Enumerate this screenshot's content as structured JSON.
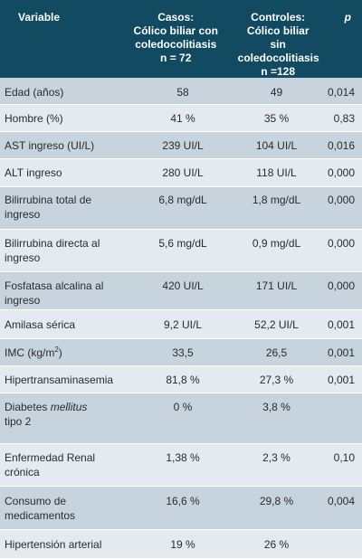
{
  "header": {
    "variable": "Variable",
    "casos": [
      "Casos:",
      "Cólico biliar con",
      "coledocolitiasis",
      "n = 72"
    ],
    "controles": [
      "Controles:",
      "Cólico biliar sin",
      "coledocolitiasis",
      "n =128"
    ],
    "p": "p"
  },
  "rows": [
    {
      "variable": "Edad (años)",
      "casos": "58",
      "controles": "49",
      "p": "0,014"
    },
    {
      "variable": "Hombre (%)",
      "casos": "41 %",
      "controles": "35 %",
      "p": "0,83"
    },
    {
      "variable": "AST ingreso (UI/L)",
      "casos": "239 UI/L",
      "controles": "104 UI/L",
      "p": "0,016"
    },
    {
      "variable": "ALT ingreso",
      "casos": "280 UI/L",
      "controles": "118 UI/L",
      "p": "0,000"
    },
    {
      "variable": "Bilirrubina total de ingreso",
      "casos": "6,8 mg/dL",
      "controles": "1,8 mg/dL",
      "p": "0,000"
    },
    {
      "variable": "Bilirrubina directa al ingreso",
      "casos": "5,6 mg/dL",
      "controles": "0,9 mg/dL",
      "p": "0,000"
    },
    {
      "variable": "Fosfatasa alcalina al ingreso",
      "casos": "420 UI/L",
      "controles": "171 UI/L",
      "p": "0,000"
    },
    {
      "variable": "Amilasa sérica",
      "casos": "9,2 UI/L",
      "controles": "52,2 UI/L",
      "p": "0,001"
    },
    {
      "variable": "IMC (kg/m",
      "variable_sup": "2",
      "variable_tail": ")",
      "casos": "33,5",
      "controles": "26,5",
      "p": "0,001"
    },
    {
      "variable": "Hipertransaminasemia",
      "casos": "81,8 %",
      "controles": "27,3 %",
      "p": "0,001"
    },
    {
      "variable": "Diabetes ",
      "variable_em": "mellitus",
      "variable_tail": " tipo 2",
      "casos": "0 %",
      "controles": "3,8 %",
      "p": ""
    },
    {
      "variable": "Enfermedad Renal crónica",
      "casos": "1,38 %",
      "controles": "2,3 %",
      "p": "0,10"
    },
    {
      "variable": "Consumo de medicamentos",
      "casos": "16,6 %",
      "controles": "29,8 %",
      "p": "0,004"
    },
    {
      "variable": "Hipertensión arterial",
      "casos": "19 %",
      "controles": "26 %",
      "p": ""
    }
  ]
}
